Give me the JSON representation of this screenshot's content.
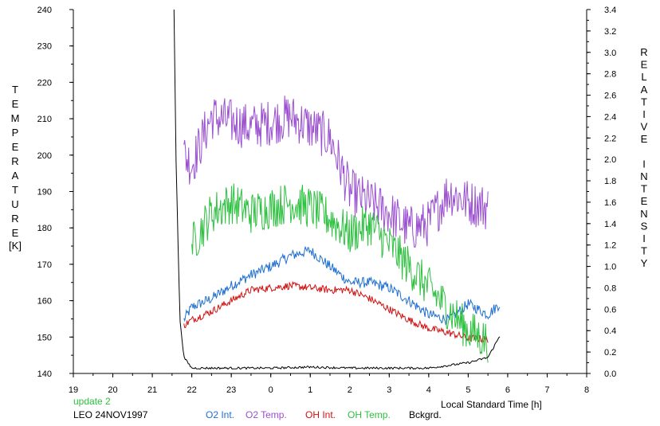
{
  "chart_data": {
    "type": "line",
    "left_axis_label_letters": [
      "T",
      "E",
      "M",
      "P",
      "E",
      "R",
      "A",
      "T",
      "U",
      "R",
      "E"
    ],
    "left_axis_unit": "[K]",
    "right_axis_label_letters": [
      "R",
      "E",
      "L",
      "A",
      "T",
      "I",
      "V",
      "E",
      " ",
      "I",
      "N",
      "T",
      "E",
      "N",
      "S",
      "I",
      "T",
      "Y"
    ],
    "xlabel": "Local Standard Time [h]",
    "x_ticks": [
      "19",
      "20",
      "21",
      "22",
      "23",
      "0",
      "1",
      "2",
      "3",
      "4",
      "5",
      "6",
      "7",
      "8"
    ],
    "xlim": [
      19,
      32
    ],
    "left_ylim": [
      140,
      240
    ],
    "left_y_ticks": [
      "140",
      "150",
      "160",
      "170",
      "180",
      "190",
      "200",
      "210",
      "220",
      "230",
      "240"
    ],
    "right_ylim": [
      0.0,
      3.4
    ],
    "right_y_ticks": [
      "0.0",
      "0.2",
      "0.4",
      "0.6",
      "0.8",
      "1.0",
      "1.2",
      "1.4",
      "1.6",
      "1.8",
      "2.0",
      "2.2",
      "2.4",
      "2.6",
      "2.8",
      "3.0",
      "3.2",
      "3.4"
    ],
    "grid": false,
    "legend_placement": "bottom",
    "annotations": {
      "update": "update 2",
      "site_date": "LEO 24NOV1997"
    },
    "series": [
      {
        "name": "O2 Int.",
        "axis": "right",
        "color": "#1e6fd0",
        "x": [
          21.8,
          22.0,
          22.5,
          23.0,
          23.5,
          24.0,
          24.5,
          25.0,
          25.5,
          26.0,
          26.5,
          27.0,
          27.5,
          28.0,
          28.5,
          29.0,
          29.5,
          29.8
        ],
        "y": [
          0.5,
          0.62,
          0.7,
          0.82,
          0.92,
          1.0,
          1.1,
          1.15,
          1.0,
          0.85,
          0.85,
          0.8,
          0.68,
          0.55,
          0.5,
          0.65,
          0.55,
          0.65
        ]
      },
      {
        "name": "O2 Temp.",
        "axis": "right",
        "color": "#9a4fd0",
        "x": [
          21.8,
          22.0,
          22.5,
          23.0,
          23.5,
          24.0,
          24.5,
          25.0,
          25.5,
          26.0,
          26.5,
          27.0,
          27.5,
          28.0,
          28.5,
          29.0,
          29.5
        ],
        "y": [
          2.05,
          1.95,
          2.4,
          2.35,
          2.3,
          2.35,
          2.4,
          2.3,
          2.2,
          1.7,
          1.6,
          1.5,
          1.35,
          1.4,
          1.7,
          1.6,
          1.55
        ]
      },
      {
        "name": "OH Int.",
        "axis": "right",
        "color": "#d01010",
        "x": [
          21.8,
          22.0,
          22.5,
          23.0,
          23.5,
          24.0,
          24.5,
          25.0,
          25.5,
          26.0,
          26.5,
          27.0,
          27.5,
          28.0,
          28.5,
          29.0,
          29.5
        ],
        "y": [
          0.45,
          0.5,
          0.58,
          0.68,
          0.78,
          0.8,
          0.82,
          0.8,
          0.78,
          0.78,
          0.7,
          0.6,
          0.5,
          0.42,
          0.38,
          0.33,
          0.32
        ]
      },
      {
        "name": "OH Temp.",
        "axis": "right",
        "color": "#2ec040",
        "x": [
          22.0,
          22.5,
          23.0,
          23.5,
          24.0,
          24.5,
          25.0,
          25.5,
          26.0,
          26.5,
          27.0,
          27.5,
          28.0,
          28.5,
          29.0,
          29.5
        ],
        "y": [
          1.2,
          1.5,
          1.6,
          1.5,
          1.55,
          1.6,
          1.55,
          1.45,
          1.3,
          1.4,
          1.2,
          1.0,
          0.8,
          0.6,
          0.4,
          0.3
        ]
      },
      {
        "name": "Bckgrd.",
        "axis": "right",
        "color": "#000000",
        "x": [
          21.55,
          21.6,
          21.7,
          21.8,
          22.0,
          22.5,
          23.0,
          24.0,
          25.0,
          26.0,
          27.0,
          28.0,
          29.0,
          29.5,
          29.8
        ],
        "y": [
          3.4,
          2.0,
          0.5,
          0.15,
          0.05,
          0.05,
          0.05,
          0.05,
          0.06,
          0.05,
          0.05,
          0.05,
          0.1,
          0.15,
          0.35
        ]
      }
    ]
  }
}
